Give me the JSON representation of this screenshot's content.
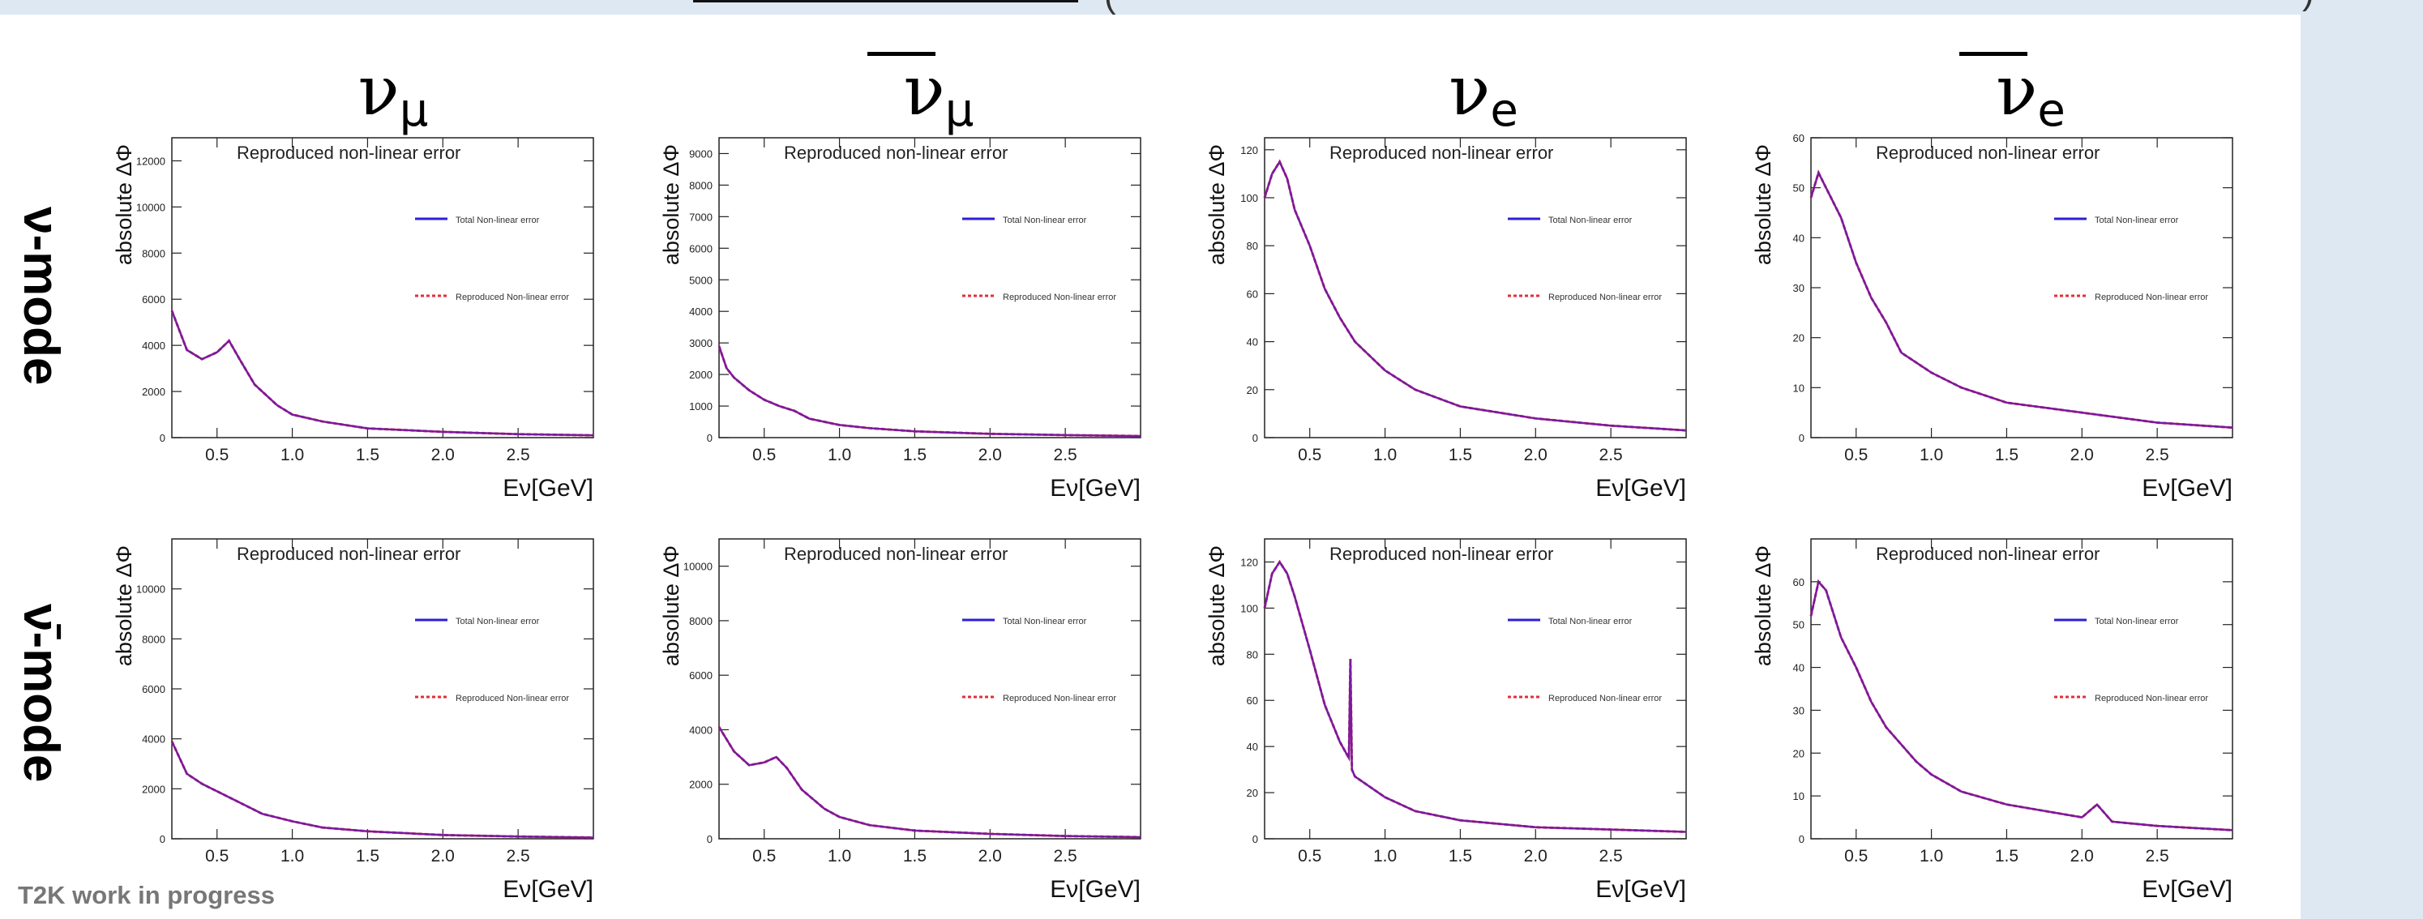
{
  "header_fragments": {
    "left": "(",
    "right": ")"
  },
  "footer_note": "T2K work in progress",
  "row_labels": [
    "ν-mode",
    "ν̄-mode"
  ],
  "column_titles": [
    {
      "base": "ν",
      "sub": "μ",
      "bar": false
    },
    {
      "base": "ν",
      "sub": "μ",
      "bar": true
    },
    {
      "base": "ν",
      "sub": "e",
      "bar": false
    },
    {
      "base": "ν",
      "sub": "e",
      "bar": true
    }
  ],
  "colors": {
    "total": "#2b1fd6",
    "reproduced": "#e0303a",
    "overlap": "#7a1aa0"
  },
  "chart_data": [
    {
      "type": "line",
      "title": "Reproduced non-linear error",
      "xlabel": "Eν[GeV]",
      "ylabel": "absolute ΔΦ",
      "xlim": [
        0.2,
        3.0
      ],
      "ylim": [
        0,
        13000
      ],
      "xticks": [
        "0.5",
        "1.0",
        "1.5",
        "2.0",
        "2.5"
      ],
      "yticks": [
        "0",
        "2000",
        "4000",
        "6000",
        "8000",
        "10000",
        "12000"
      ],
      "legend": [
        "Total Non-linear error",
        "Reproduced Non-linear error"
      ],
      "legend_position": "right",
      "x": [
        0.2,
        0.3,
        0.4,
        0.5,
        0.58,
        0.65,
        0.75,
        0.9,
        1.0,
        1.2,
        1.5,
        2.0,
        2.5,
        3.0
      ],
      "series": [
        {
          "name": "Total Non-linear error",
          "values": [
            5500,
            3800,
            3400,
            3700,
            4200,
            3400,
            2300,
            1400,
            1000,
            700,
            400,
            250,
            150,
            100
          ]
        },
        {
          "name": "Reproduced Non-linear error",
          "values": [
            5500,
            3800,
            3400,
            3700,
            4200,
            3400,
            2300,
            1400,
            1000,
            700,
            400,
            250,
            150,
            100
          ]
        }
      ]
    },
    {
      "type": "line",
      "title": "Reproduced non-linear error",
      "xlabel": "Eν[GeV]",
      "ylabel": "absolute ΔΦ",
      "xlim": [
        0.2,
        3.0
      ],
      "ylim": [
        0,
        9500
      ],
      "xticks": [
        "0.5",
        "1.0",
        "1.5",
        "2.0",
        "2.5"
      ],
      "yticks": [
        "0",
        "1000",
        "2000",
        "3000",
        "4000",
        "5000",
        "6000",
        "7000",
        "8000",
        "9000"
      ],
      "legend": [
        "Total Non-linear error",
        "Reproduced Non-linear error"
      ],
      "legend_position": "right",
      "x": [
        0.2,
        0.25,
        0.3,
        0.4,
        0.5,
        0.6,
        0.7,
        0.8,
        1.0,
        1.2,
        1.5,
        2.0,
        2.5,
        3.0
      ],
      "series": [
        {
          "name": "Total Non-linear error",
          "values": [
            2900,
            2200,
            1900,
            1500,
            1200,
            1000,
            850,
            600,
            400,
            300,
            200,
            120,
            80,
            50
          ]
        },
        {
          "name": "Reproduced Non-linear error",
          "values": [
            2900,
            2200,
            1900,
            1500,
            1200,
            1000,
            850,
            600,
            400,
            300,
            200,
            120,
            80,
            50
          ]
        }
      ]
    },
    {
      "type": "line",
      "title": "Reproduced non-linear error",
      "xlabel": "Eν[GeV]",
      "ylabel": "absolute ΔΦ",
      "xlim": [
        0.2,
        3.0
      ],
      "ylim": [
        0,
        125
      ],
      "xticks": [
        "0.5",
        "1.0",
        "1.5",
        "2.0",
        "2.5"
      ],
      "yticks": [
        "0",
        "20",
        "40",
        "60",
        "80",
        "100",
        "120"
      ],
      "legend": [
        "Total Non-linear error",
        "Reproduced Non-linear error"
      ],
      "legend_position": "right",
      "x": [
        0.2,
        0.25,
        0.3,
        0.35,
        0.4,
        0.5,
        0.6,
        0.7,
        0.8,
        1.0,
        1.2,
        1.5,
        2.0,
        2.5,
        3.0
      ],
      "series": [
        {
          "name": "Total Non-linear error",
          "values": [
            100,
            110,
            115,
            108,
            95,
            80,
            62,
            50,
            40,
            28,
            20,
            13,
            8,
            5,
            3
          ]
        },
        {
          "name": "Reproduced Non-linear error",
          "values": [
            100,
            110,
            115,
            108,
            95,
            80,
            62,
            50,
            40,
            28,
            20,
            13,
            8,
            5,
            3
          ]
        }
      ]
    },
    {
      "type": "line",
      "title": "Reproduced non-linear error",
      "xlabel": "Eν[GeV]",
      "ylabel": "absolute ΔΦ",
      "xlim": [
        0.2,
        3.0
      ],
      "ylim": [
        0,
        60
      ],
      "xticks": [
        "0.5",
        "1.0",
        "1.5",
        "2.0",
        "2.5"
      ],
      "yticks": [
        "0",
        "10",
        "20",
        "30",
        "40",
        "50",
        "60"
      ],
      "legend": [
        "Total Non-linear error",
        "Reproduced Non-linear error"
      ],
      "legend_position": "right",
      "x": [
        0.2,
        0.25,
        0.3,
        0.4,
        0.5,
        0.6,
        0.7,
        0.8,
        1.0,
        1.2,
        1.5,
        2.0,
        2.5,
        3.0
      ],
      "series": [
        {
          "name": "Total Non-linear error",
          "values": [
            48,
            53,
            50,
            44,
            35,
            28,
            23,
            17,
            13,
            10,
            7,
            5,
            3,
            2
          ]
        },
        {
          "name": "Reproduced Non-linear error",
          "values": [
            48,
            53,
            50,
            44,
            35,
            28,
            23,
            17,
            13,
            10,
            7,
            5,
            3,
            2
          ]
        }
      ]
    },
    {
      "type": "line",
      "title": "Reproduced non-linear error",
      "xlabel": "Eν[GeV]",
      "ylabel": "absolute ΔΦ",
      "xlim": [
        0.2,
        3.0
      ],
      "ylim": [
        0,
        12000
      ],
      "xticks": [
        "0.5",
        "1.0",
        "1.5",
        "2.0",
        "2.5"
      ],
      "yticks": [
        "0",
        "2000",
        "4000",
        "6000",
        "8000",
        "10000"
      ],
      "legend": [
        "Total Non-linear error",
        "Reproduced Non-linear error"
      ],
      "legend_position": "right",
      "x": [
        0.2,
        0.3,
        0.4,
        0.5,
        0.6,
        0.7,
        0.8,
        1.0,
        1.2,
        1.5,
        2.0,
        2.5,
        3.0
      ],
      "series": [
        {
          "name": "Total Non-linear error",
          "values": [
            3900,
            2600,
            2200,
            1900,
            1600,
            1300,
            1000,
            700,
            450,
            300,
            150,
            90,
            50
          ]
        },
        {
          "name": "Reproduced Non-linear error",
          "values": [
            3900,
            2600,
            2200,
            1900,
            1600,
            1300,
            1000,
            700,
            450,
            300,
            150,
            90,
            50
          ]
        }
      ]
    },
    {
      "type": "line",
      "title": "Reproduced non-linear error",
      "xlabel": "Eν[GeV]",
      "ylabel": "absolute ΔΦ",
      "xlim": [
        0.2,
        3.0
      ],
      "ylim": [
        0,
        11000
      ],
      "xticks": [
        "0.5",
        "1.0",
        "1.5",
        "2.0",
        "2.5"
      ],
      "yticks": [
        "0",
        "2000",
        "4000",
        "6000",
        "8000",
        "10000"
      ],
      "legend": [
        "Total Non-linear error",
        "Reproduced Non-linear error"
      ],
      "legend_position": "right",
      "x": [
        0.2,
        0.3,
        0.4,
        0.5,
        0.58,
        0.65,
        0.75,
        0.9,
        1.0,
        1.2,
        1.5,
        2.0,
        2.5,
        3.0
      ],
      "series": [
        {
          "name": "Total Non-linear error",
          "values": [
            4100,
            3200,
            2700,
            2800,
            3000,
            2600,
            1800,
            1100,
            800,
            500,
            300,
            180,
            100,
            60
          ]
        },
        {
          "name": "Reproduced Non-linear error",
          "values": [
            4100,
            3200,
            2700,
            2800,
            3000,
            2600,
            1800,
            1100,
            800,
            500,
            300,
            180,
            100,
            60
          ]
        }
      ]
    },
    {
      "type": "line",
      "title": "Reproduced non-linear error",
      "xlabel": "Eν[GeV]",
      "ylabel": "absolute ΔΦ",
      "xlim": [
        0.2,
        3.0
      ],
      "ylim": [
        0,
        130
      ],
      "xticks": [
        "0.5",
        "1.0",
        "1.5",
        "2.0",
        "2.5"
      ],
      "yticks": [
        "0",
        "20",
        "40",
        "60",
        "80",
        "100",
        "120"
      ],
      "legend": [
        "Total Non-linear error",
        "Reproduced Non-linear error"
      ],
      "legend_position": "right",
      "x": [
        0.2,
        0.25,
        0.3,
        0.35,
        0.4,
        0.5,
        0.6,
        0.7,
        0.76,
        0.77,
        0.78,
        0.8,
        1.0,
        1.2,
        1.5,
        2.0,
        2.5,
        3.0
      ],
      "series": [
        {
          "name": "Total Non-linear error",
          "values": [
            100,
            115,
            120,
            115,
            105,
            82,
            58,
            42,
            35,
            78,
            30,
            27,
            18,
            12,
            8,
            5,
            4,
            3
          ]
        },
        {
          "name": "Reproduced Non-linear error",
          "values": [
            100,
            115,
            120,
            115,
            105,
            82,
            58,
            42,
            35,
            78,
            30,
            27,
            18,
            12,
            8,
            5,
            4,
            3
          ]
        }
      ]
    },
    {
      "type": "line",
      "title": "Reproduced non-linear error",
      "xlabel": "Eν[GeV]",
      "ylabel": "absolute ΔΦ",
      "xlim": [
        0.2,
        3.0
      ],
      "ylim": [
        0,
        70
      ],
      "xticks": [
        "0.5",
        "1.0",
        "1.5",
        "2.0",
        "2.5"
      ],
      "yticks": [
        "0",
        "10",
        "20",
        "30",
        "40",
        "50",
        "60"
      ],
      "legend": [
        "Total Non-linear error",
        "Reproduced Non-linear error"
      ],
      "legend_position": "right",
      "x": [
        0.2,
        0.25,
        0.3,
        0.4,
        0.5,
        0.6,
        0.7,
        0.8,
        0.9,
        1.0,
        1.2,
        1.5,
        2.0,
        2.1,
        2.2,
        2.5,
        3.0
      ],
      "series": [
        {
          "name": "Total Non-linear error",
          "values": [
            52,
            60,
            58,
            47,
            40,
            32,
            26,
            22,
            18,
            15,
            11,
            8,
            5,
            8,
            4,
            3,
            2
          ]
        },
        {
          "name": "Reproduced Non-linear error",
          "values": [
            52,
            60,
            58,
            47,
            40,
            32,
            26,
            22,
            18,
            15,
            11,
            8,
            5,
            8,
            4,
            3,
            2
          ]
        }
      ]
    }
  ]
}
